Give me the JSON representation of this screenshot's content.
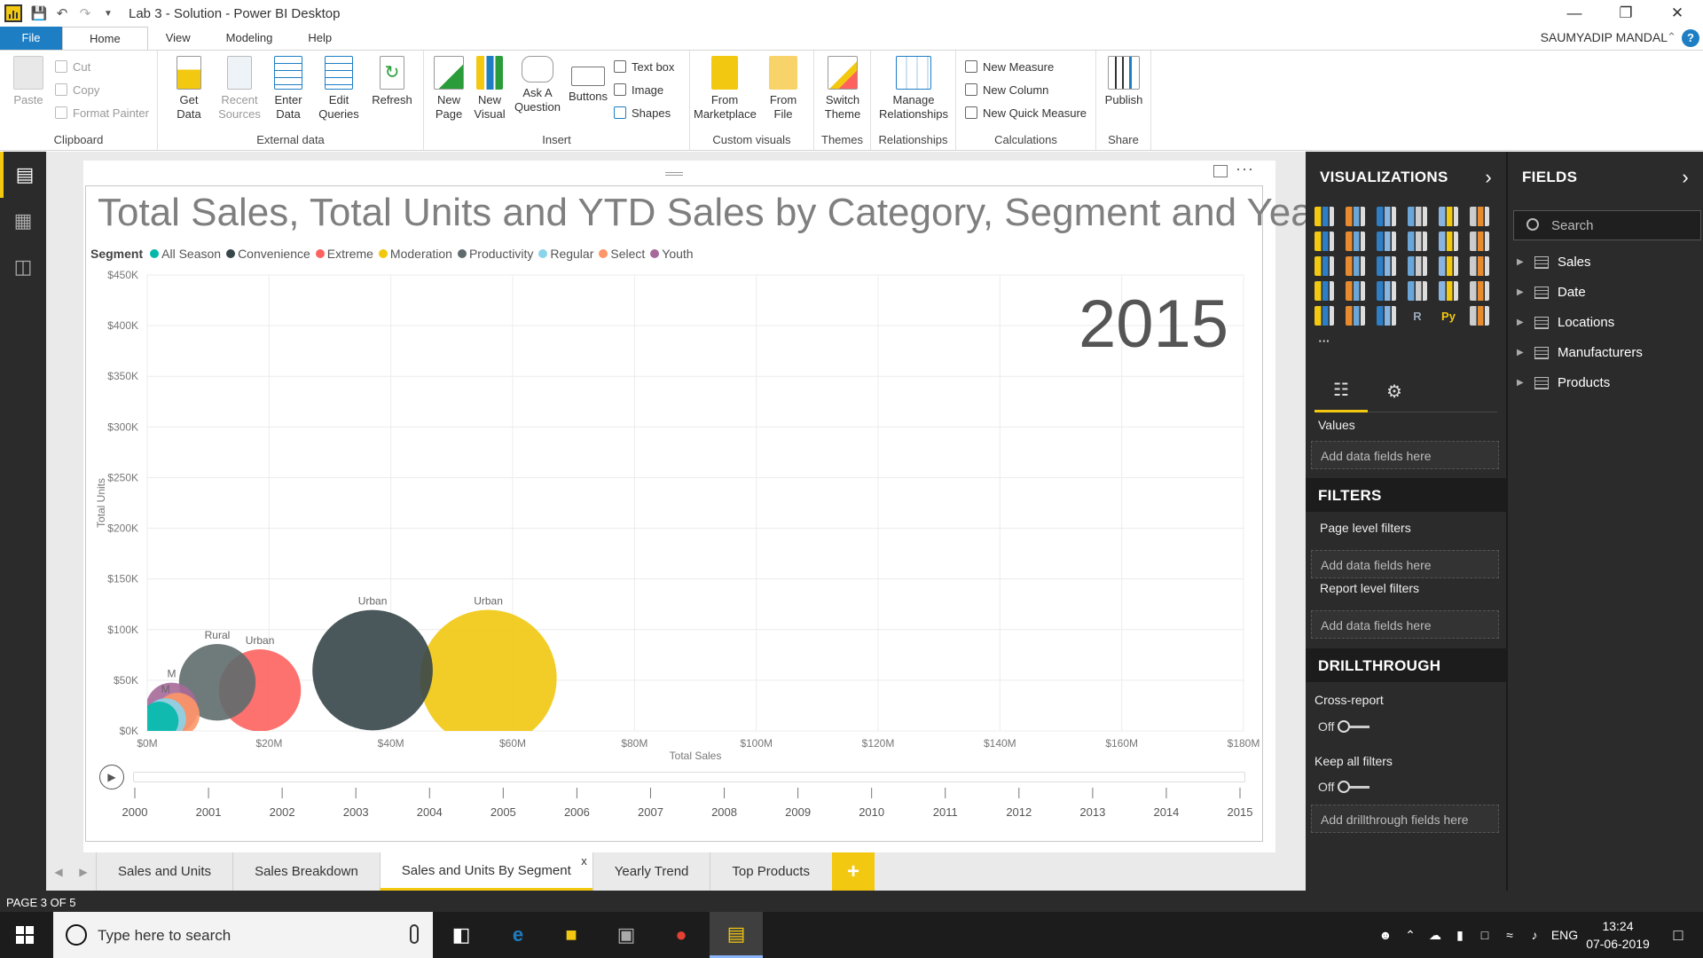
{
  "window": {
    "title": "Lab 3 - Solution - Power BI Desktop",
    "user": "SAUMYADIP MANDAL"
  },
  "ribbon_tabs": [
    "File",
    "Home",
    "View",
    "Modeling",
    "Help"
  ],
  "ribbon": {
    "clipboard": {
      "paste": "Paste",
      "cut": "Cut",
      "copy": "Copy",
      "format_painter": "Format Painter",
      "label": "Clipboard"
    },
    "external_data": {
      "get_data": "Get Data",
      "recent_sources": "Recent Sources",
      "enter_data": "Enter Data",
      "edit_queries": "Edit Queries",
      "refresh": "Refresh",
      "label": "External data"
    },
    "insert": {
      "new_page": "New Page",
      "new_visual": "New Visual",
      "ask_question": "Ask A Question",
      "buttons": "Buttons",
      "text_box": "Text box",
      "image": "Image",
      "shapes": "Shapes",
      "label": "Insert"
    },
    "custom_visuals": {
      "from_marketplace": "From Marketplace",
      "from_file": "From File",
      "label": "Custom visuals"
    },
    "themes": {
      "switch_theme": "Switch Theme",
      "label": "Themes"
    },
    "relationships": {
      "manage": "Manage Relationships",
      "label": "Relationships"
    },
    "calculations": {
      "new_measure": "New Measure",
      "new_column": "New Column",
      "new_quick_measure": "New Quick Measure",
      "label": "Calculations"
    },
    "share": {
      "publish": "Publish",
      "label": "Share"
    }
  },
  "visual": {
    "title": "Total Sales, Total Units and YTD Sales by Category, Segment and Year",
    "legend_title": "Segment",
    "play_year": "2015"
  },
  "chart_data": {
    "type": "scatter",
    "title": "Total Sales, Total Units and YTD Sales by Category, Segment and Year",
    "xlabel": "Total Sales",
    "ylabel": "Total Units",
    "xlim": [
      0,
      180000000
    ],
    "ylim": [
      0,
      450000
    ],
    "x_ticks": [
      "$0M",
      "$20M",
      "$40M",
      "$60M",
      "$80M",
      "$100M",
      "$120M",
      "$140M",
      "$160M",
      "$180M"
    ],
    "y_ticks": [
      "$0K",
      "$50K",
      "$100K",
      "$150K",
      "$200K",
      "$250K",
      "$300K",
      "$350K",
      "$400K",
      "$450K"
    ],
    "legend": [
      {
        "name": "All Season",
        "color": "#01b8aa"
      },
      {
        "name": "Convenience",
        "color": "#374649"
      },
      {
        "name": "Extreme",
        "color": "#fd625e"
      },
      {
        "name": "Moderation",
        "color": "#f2c80f"
      },
      {
        "name": "Productivity",
        "color": "#5f6b6d"
      },
      {
        "name": "Regular",
        "color": "#8ad4eb"
      },
      {
        "name": "Select",
        "color": "#fe9666"
      },
      {
        "name": "Youth",
        "color": "#a66999"
      }
    ],
    "points": [
      {
        "segment": "Moderation",
        "category": "Urban",
        "x": 56000000,
        "y": 52000,
        "r": 0.25,
        "color": "#f2c80f",
        "label": "Urban"
      },
      {
        "segment": "Convenience",
        "category": "Urban",
        "x": 37000000,
        "y": 60000,
        "r": 0.22,
        "color": "#374649",
        "label": "Urban"
      },
      {
        "segment": "Extreme",
        "category": "Urban",
        "x": 18500000,
        "y": 40000,
        "r": 0.15,
        "color": "#fd625e",
        "label": "Urban"
      },
      {
        "segment": "Productivity",
        "category": "Rural",
        "x": 11500000,
        "y": 48000,
        "r": 0.14,
        "color": "#5f6b6d",
        "label": "Rural"
      },
      {
        "segment": "Youth",
        "category": "Mix",
        "x": 4000000,
        "y": 22000,
        "r": 0.095,
        "color": "#a66999",
        "label": "M"
      },
      {
        "segment": "Select",
        "category": "Mix",
        "x": 5000000,
        "y": 16000,
        "r": 0.08,
        "color": "#fe9666",
        "label": ""
      },
      {
        "segment": "Regular",
        "category": "Mix",
        "x": 3000000,
        "y": 12000,
        "r": 0.075,
        "color": "#8ad4eb",
        "label": "M"
      },
      {
        "segment": "All Season",
        "category": "Mix",
        "x": 2000000,
        "y": 10000,
        "r": 0.07,
        "color": "#01b8aa",
        "label": ""
      }
    ],
    "play_axis": [
      "2000",
      "2001",
      "2002",
      "2003",
      "2004",
      "2005",
      "2006",
      "2007",
      "2008",
      "2009",
      "2010",
      "2011",
      "2012",
      "2013",
      "2014",
      "2015"
    ],
    "grid": true,
    "legend_position": "top-left"
  },
  "page_tabs": [
    "Sales and Units",
    "Sales Breakdown",
    "Sales and Units By Segment",
    "Yearly Trend",
    "Top Products"
  ],
  "active_page": "Sales and Units By Segment",
  "status": "PAGE 3 OF 5",
  "visualizations_pane": {
    "title": "VISUALIZATIONS",
    "values_label": "Values",
    "values_well": "Add data fields here",
    "filters_title": "FILTERS",
    "page_level_filters": "Page level filters",
    "page_filters_well": "Add data fields here",
    "report_level_filters": "Report level filters",
    "report_filters_well": "Add data fields here",
    "drillthrough_title": "DRILLTHROUGH",
    "cross_report": "Cross-report",
    "cross_report_state": "Off",
    "keep_all_filters": "Keep all filters",
    "keep_all_filters_state": "Off",
    "drillthrough_well": "Add drillthrough fields here"
  },
  "fields_pane": {
    "title": "FIELDS",
    "search_placeholder": "Search",
    "tables": [
      "Sales",
      "Date",
      "Locations",
      "Manufacturers",
      "Products"
    ]
  },
  "taskbar": {
    "search_placeholder": "Type here to search",
    "language": "ENG",
    "time": "13:24",
    "date": "07-06-2019"
  }
}
